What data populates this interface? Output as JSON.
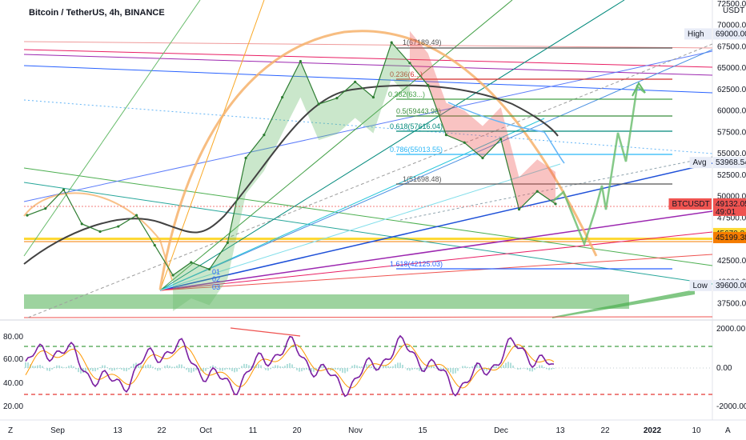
{
  "header": {
    "title": "Bitcoin / TetherUS, 4h, BINANCE",
    "currency": "USDT"
  },
  "price_axis": {
    "ticks": [
      "72500.00",
      "70000.00",
      "67500.00",
      "65000.00",
      "62500.00",
      "60000.00",
      "57500.00",
      "55000.00",
      "52500.00",
      "50000.00",
      "47500.00",
      "42500.00",
      "40000.00",
      "37500.00"
    ]
  },
  "price_labels": [
    {
      "tag": "High",
      "value": "69000.00",
      "color": "#e8ecf7",
      "text_color": "#131722"
    },
    {
      "tag": "Avg",
      "value": "53968.54",
      "color": "#e8ecf7",
      "text_color": "#131722"
    },
    {
      "tag": "BTCUSDT",
      "value": "49132.05",
      "sub": "49:01",
      "color": "#ef5350",
      "text_color": "#ffffff"
    },
    {
      "tag": "",
      "value": "45670.84",
      "color": "#fdd835",
      "text_color": "#131722"
    },
    {
      "tag": "",
      "value": "45199.38",
      "color": "#f57c00",
      "text_color": "#ffffff"
    },
    {
      "tag": "Low",
      "value": "39600.00",
      "color": "#e8ecf7",
      "text_color": "#131722"
    }
  ],
  "fib_labels": [
    "1(67189.49)",
    "0.236(6...)",
    "0.382(63...)",
    "0.5(59443.98)",
    "0.618(57616.04)",
    "0.786(55013.55)",
    "1(51698.48)",
    "1.618(42125.03)"
  ],
  "annotations": [
    "01",
    "02",
    "03"
  ],
  "oscillator": {
    "left_ticks": [
      "80.00",
      "60.00",
      "40.00",
      "20.00"
    ],
    "right_ticks": [
      "2000.00",
      "0.00",
      "-2000.00"
    ]
  },
  "time_axis": {
    "ticks": [
      "Sep",
      "13",
      "22",
      "Oct",
      "11",
      "20",
      "Nov",
      "15",
      "Dec",
      "13",
      "22",
      "2022",
      "10"
    ],
    "bold": "2022"
  },
  "corner": {
    "left": "Z",
    "right": "A"
  },
  "chart_data": {
    "type": "line",
    "title": "Bitcoin / TetherUS, 4h, BINANCE",
    "ylabel": "USDT",
    "ylim": [
      36500,
      72500
    ],
    "series": [
      {
        "name": "BTCUSDT",
        "x": [
          "Aug 28",
          "Sep 1",
          "Sep 5",
          "Sep 7",
          "Sep 10",
          "Sep 13",
          "Sep 17",
          "Sep 20",
          "Sep 22",
          "Sep 25",
          "Sep 29",
          "Oct 1",
          "Oct 6",
          "Oct 11",
          "Oct 15",
          "Oct 20",
          "Oct 24",
          "Oct 28",
          "Nov 1",
          "Nov 5",
          "Nov 10",
          "Nov 12",
          "Nov 15",
          "Nov 19",
          "Nov 23",
          "Nov 26",
          "Nov 30",
          "Dec 4",
          "Dec 8",
          "Dec 12"
        ],
        "values": [
          47800,
          48600,
          50800,
          46800,
          45900,
          46500,
          47800,
          44300,
          40800,
          42300,
          41500,
          44600,
          54500,
          57200,
          61600,
          65800,
          60800,
          61500,
          63400,
          61600,
          68000,
          65600,
          63000,
          57200,
          56300,
          54500,
          56700,
          48500,
          50600,
          49132
        ]
      }
    ],
    "oscillator_range": [
      20,
      80
    ],
    "oscillator_levels": [
      70,
      30
    ]
  }
}
